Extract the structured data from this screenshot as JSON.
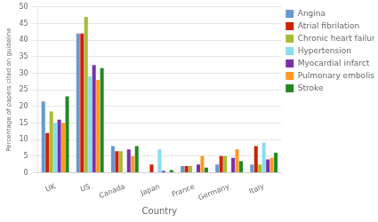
{
  "chart_data": {
    "type": "bar",
    "xlabel": "Country",
    "ylabel": "Percentage of papers cited on guideline",
    "categories": [
      "UK",
      "US",
      "Canada",
      "Japan",
      "France",
      "Germany",
      "Italy"
    ],
    "series": [
      {
        "name": "Angina",
        "color": "#6699cc",
        "values": [
          21.5,
          42.0,
          8.0,
          0.0,
          2.0,
          2.5,
          2.5
        ]
      },
      {
        "name": "Atrial fibrilation",
        "color": "#cc2200",
        "values": [
          12.0,
          42.0,
          6.5,
          2.5,
          2.0,
          5.0,
          8.0
        ]
      },
      {
        "name": "Chronic heart failure",
        "color": "#aabb33",
        "values": [
          18.5,
          47.0,
          6.5,
          0.0,
          2.0,
          5.0,
          2.5
        ]
      },
      {
        "name": "Hypertension",
        "color": "#88ddee",
        "values": [
          15.0,
          29.0,
          0.0,
          7.0,
          0.0,
          0.0,
          9.0
        ]
      },
      {
        "name": "Myocardial infarct",
        "color": "#7733aa",
        "values": [
          16.0,
          32.5,
          7.0,
          0.5,
          2.5,
          4.5,
          4.0
        ]
      },
      {
        "name": "Pulmonary embolism",
        "color": "#ff9922",
        "values": [
          15.0,
          28.0,
          5.0,
          0.0,
          5.0,
          7.0,
          4.5
        ]
      },
      {
        "name": "Stroke",
        "color": "#228822",
        "values": [
          23.0,
          31.5,
          8.0,
          0.8,
          1.5,
          3.5,
          6.0
        ]
      }
    ],
    "ylim": [
      0,
      50
    ],
    "yticks": [
      0,
      5,
      10,
      15,
      20,
      25,
      30,
      35,
      40,
      45,
      50
    ],
    "grid": true,
    "legend": "upper right"
  }
}
